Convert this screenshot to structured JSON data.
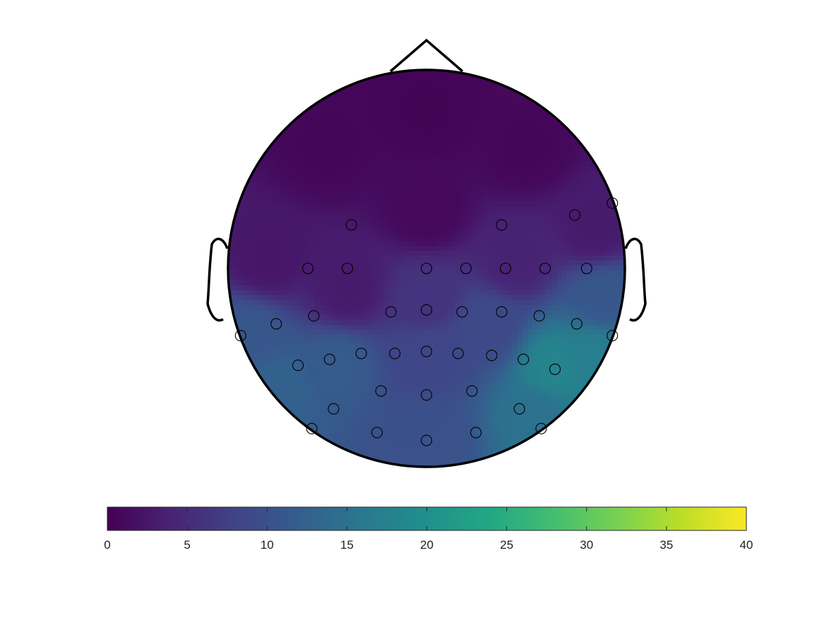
{
  "chart_data": {
    "type": "heatmap",
    "title": "",
    "xlabel": "",
    "ylabel": "",
    "colorbar": {
      "orientation": "horizontal",
      "placement": "bottom",
      "range": [
        0,
        40
      ],
      "colormap": "viridis",
      "ticks": [
        0,
        5,
        10,
        15,
        20,
        25,
        30,
        35,
        40
      ],
      "tick_labels": [
        "0",
        "5",
        "10",
        "15",
        "20",
        "25",
        "30",
        "35",
        "40"
      ]
    },
    "head_outline": {
      "nose": true,
      "ears": true
    },
    "value_field": [
      {
        "x": 0.0,
        "y": 0.8,
        "value": 0.3
      },
      {
        "x": -0.5,
        "y": 0.6,
        "value": 0.6
      },
      {
        "x": 0.5,
        "y": 0.6,
        "value": 0.6
      },
      {
        "x": 0.0,
        "y": 0.3,
        "value": 0.8
      },
      {
        "x": -0.8,
        "y": 0.05,
        "value": 2.5
      },
      {
        "x": 0.85,
        "y": 0.2,
        "value": 3.0
      },
      {
        "x": 0.45,
        "y": 0.05,
        "value": 4.0
      },
      {
        "x": -0.4,
        "y": -0.1,
        "value": 3.0
      },
      {
        "x": 0.0,
        "y": -0.15,
        "value": 6.0
      },
      {
        "x": 0.0,
        "y": -0.45,
        "value": 8.5
      },
      {
        "x": 0.0,
        "y": -0.85,
        "value": 10.0
      },
      {
        "x": -0.45,
        "y": -0.5,
        "value": 11.5
      },
      {
        "x": -0.75,
        "y": -0.6,
        "value": 12.5
      },
      {
        "x": -0.9,
        "y": -0.35,
        "value": 11.0
      },
      {
        "x": 0.65,
        "y": -0.5,
        "value": 18.0
      },
      {
        "x": 0.85,
        "y": -0.45,
        "value": 17.0
      },
      {
        "x": 0.55,
        "y": -0.75,
        "value": 15.0
      },
      {
        "x": 0.3,
        "y": -0.3,
        "value": 9.0
      },
      {
        "x": 0.9,
        "y": -0.15,
        "value": 11.0
      }
    ],
    "electrodes": [
      {
        "x": -0.38,
        "y": 0.22
      },
      {
        "x": 0.38,
        "y": 0.22
      },
      {
        "x": 0.75,
        "y": 0.27
      },
      {
        "x": 0.94,
        "y": 0.33
      },
      {
        "x": -0.6,
        "y": 0.0
      },
      {
        "x": -0.4,
        "y": 0.0
      },
      {
        "x": 0.0,
        "y": 0.0
      },
      {
        "x": 0.2,
        "y": 0.0
      },
      {
        "x": 0.4,
        "y": 0.0
      },
      {
        "x": 0.6,
        "y": 0.0
      },
      {
        "x": 0.81,
        "y": 0.0
      },
      {
        "x": -0.94,
        "y": -0.34
      },
      {
        "x": -0.76,
        "y": -0.28
      },
      {
        "x": -0.57,
        "y": -0.24
      },
      {
        "x": -0.18,
        "y": -0.22
      },
      {
        "x": 0.0,
        "y": -0.21
      },
      {
        "x": 0.18,
        "y": -0.22
      },
      {
        "x": 0.38,
        "y": -0.22
      },
      {
        "x": 0.57,
        "y": -0.24
      },
      {
        "x": 0.76,
        "y": -0.28
      },
      {
        "x": 0.94,
        "y": -0.34
      },
      {
        "x": -0.65,
        "y": -0.49
      },
      {
        "x": -0.49,
        "y": -0.46
      },
      {
        "x": -0.33,
        "y": -0.43
      },
      {
        "x": -0.16,
        "y": -0.43
      },
      {
        "x": 0.0,
        "y": -0.42
      },
      {
        "x": 0.16,
        "y": -0.43
      },
      {
        "x": 0.33,
        "y": -0.44
      },
      {
        "x": 0.49,
        "y": -0.46
      },
      {
        "x": 0.65,
        "y": -0.51
      },
      {
        "x": -0.23,
        "y": -0.62
      },
      {
        "x": 0.0,
        "y": -0.64
      },
      {
        "x": 0.23,
        "y": -0.62
      },
      {
        "x": -0.47,
        "y": -0.71
      },
      {
        "x": 0.47,
        "y": -0.71
      },
      {
        "x": -0.58,
        "y": -0.81
      },
      {
        "x": -0.25,
        "y": -0.83
      },
      {
        "x": 0.0,
        "y": -0.87
      },
      {
        "x": 0.25,
        "y": -0.83
      },
      {
        "x": 0.58,
        "y": -0.81
      }
    ]
  }
}
